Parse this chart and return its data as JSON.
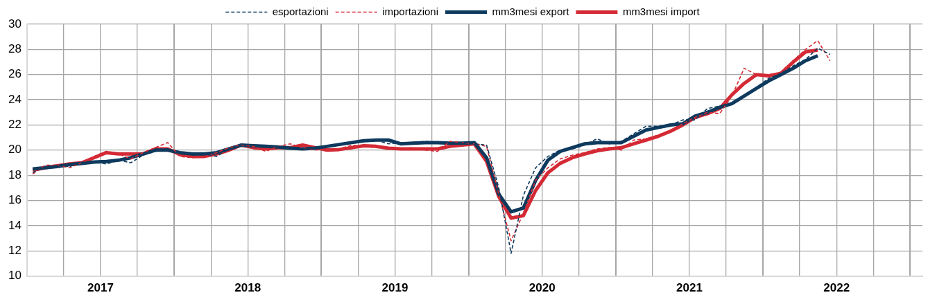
{
  "chart_data": {
    "type": "line",
    "x": [
      "2017-01-15",
      "2017-02-15",
      "2017-03-15",
      "2017-04-15",
      "2017-05-15",
      "2017-06-15",
      "2017-07-15",
      "2017-08-15",
      "2017-09-15",
      "2017-10-15",
      "2017-11-15",
      "2017-12-15",
      "2018-01-15",
      "2018-02-15",
      "2018-03-15",
      "2018-04-15",
      "2018-05-15",
      "2018-06-15",
      "2018-07-15",
      "2018-08-15",
      "2018-09-15",
      "2018-10-15",
      "2018-11-15",
      "2018-12-15",
      "2019-01-15",
      "2019-02-15",
      "2019-03-15",
      "2019-04-15",
      "2019-05-15",
      "2019-06-15",
      "2019-07-15",
      "2019-08-15",
      "2019-09-15",
      "2019-10-15",
      "2019-11-15",
      "2019-12-15",
      "2020-01-15",
      "2020-02-15",
      "2020-03-15",
      "2020-04-15",
      "2020-05-15",
      "2020-06-15",
      "2020-07-15",
      "2020-08-15",
      "2020-09-15",
      "2020-10-15",
      "2020-11-15",
      "2020-12-15",
      "2021-01-15",
      "2021-02-15",
      "2021-03-15",
      "2021-04-15",
      "2021-05-15",
      "2021-06-15",
      "2021-07-15",
      "2021-08-15",
      "2021-09-15",
      "2021-10-15",
      "2021-11-15",
      "2021-12-15",
      "2022-01-15",
      "2022-02-15",
      "2022-03-15",
      "2022-04-15",
      "2022-05-15",
      "2022-06-15"
    ],
    "series": [
      {
        "name": "esportazioni",
        "color": "#0e3a5e",
        "line_style": "dashed",
        "values": [
          18.2,
          18.7,
          18.8,
          18.7,
          19.0,
          19.1,
          18.9,
          19.2,
          19.0,
          19.6,
          19.9,
          20.1,
          19.8,
          19.6,
          19.7,
          19.5,
          20.1,
          20.4,
          20.4,
          20.2,
          20.3,
          20.2,
          20.1,
          20.1,
          20.3,
          20.4,
          20.6,
          20.8,
          20.8,
          20.5,
          20.6,
          20.6,
          20.7,
          20.6,
          20.5,
          20.6,
          20.5,
          20.4,
          17.0,
          11.8,
          16.4,
          18.6,
          19.5,
          20.0,
          20.1,
          20.4,
          20.9,
          20.5,
          20.7,
          21.3,
          21.9,
          21.9,
          22.0,
          22.4,
          22.4,
          23.3,
          23.5,
          23.7,
          24.2,
          25.0,
          25.7,
          26.1,
          26.7,
          27.2,
          28.1,
          27.6
        ]
      },
      {
        "name": "importazioni",
        "color": "#d42a35",
        "line_style": "dashed",
        "values": [
          18.1,
          18.8,
          18.8,
          18.6,
          19.0,
          19.5,
          19.9,
          19.7,
          19.3,
          19.8,
          20.2,
          20.6,
          19.5,
          19.4,
          19.5,
          19.8,
          20.2,
          20.4,
          20.3,
          19.9,
          20.3,
          20.5,
          20.2,
          20.0,
          20.1,
          20.1,
          20.4,
          20.3,
          20.2,
          20.1,
          20.1,
          20.2,
          20.0,
          19.9,
          20.7,
          20.6,
          20.5,
          20.3,
          16.5,
          12.8,
          15.0,
          17.6,
          18.6,
          19.3,
          19.6,
          19.8,
          20.1,
          20.2,
          20.0,
          20.8,
          20.9,
          21.2,
          21.6,
          22.1,
          22.6,
          23.0,
          22.9,
          24.3,
          26.5,
          26.0,
          25.9,
          26.2,
          27.1,
          28.0,
          28.7,
          27.1
        ]
      },
      {
        "name": "mm3mesi export",
        "color": "#0e3a5e",
        "line_style": "solid",
        "values": [
          18.5,
          18.6,
          18.7,
          18.85,
          18.95,
          19.05,
          19.1,
          19.2,
          19.4,
          19.7,
          20.0,
          20.0,
          19.8,
          19.7,
          19.7,
          19.8,
          20.1,
          20.4,
          20.35,
          20.3,
          20.25,
          20.15,
          20.1,
          20.15,
          20.3,
          20.45,
          20.6,
          20.75,
          20.8,
          20.8,
          20.5,
          20.55,
          20.6,
          20.6,
          20.55,
          20.55,
          20.6,
          19.4,
          16.5,
          15.1,
          15.4,
          17.6,
          19.2,
          19.9,
          20.2,
          20.5,
          20.6,
          20.6,
          20.6,
          21.1,
          21.6,
          21.8,
          22.0,
          22.1,
          22.7,
          23.0,
          23.4,
          23.7,
          24.3,
          24.9,
          25.5,
          26.0,
          26.5,
          27.1,
          27.5,
          null
        ]
      },
      {
        "name": "mm3mesi import",
        "color": "#d42a35",
        "line_style": "solid",
        "values": [
          18.4,
          18.6,
          18.75,
          18.9,
          19.0,
          19.4,
          19.8,
          19.7,
          19.7,
          19.7,
          20.1,
          20.1,
          19.65,
          19.5,
          19.5,
          19.7,
          20.0,
          20.4,
          20.2,
          20.1,
          20.2,
          20.2,
          20.4,
          20.2,
          20.0,
          20.05,
          20.2,
          20.35,
          20.3,
          20.15,
          20.1,
          20.1,
          20.1,
          20.1,
          20.3,
          20.4,
          20.5,
          19.1,
          16.3,
          14.6,
          14.8,
          16.8,
          18.2,
          18.95,
          19.4,
          19.7,
          19.95,
          20.1,
          20.2,
          20.5,
          20.8,
          21.1,
          21.5,
          22.0,
          22.6,
          22.9,
          23.3,
          24.4,
          25.3,
          26.0,
          25.9,
          26.1,
          27.0,
          27.8,
          27.95,
          null
        ]
      }
    ],
    "xlim": [
      "2017-01-01",
      "2023-02-01"
    ],
    "xticks": [
      {
        "value": "2017-01-01",
        "label": null
      },
      {
        "value": "2017-04-01",
        "label": null
      },
      {
        "value": "2017-07-01",
        "label": "2017"
      },
      {
        "value": "2017-10-01",
        "label": null
      },
      {
        "value": "2018-01-01",
        "label": null
      },
      {
        "value": "2018-04-01",
        "label": null
      },
      {
        "value": "2018-07-01",
        "label": "2018"
      },
      {
        "value": "2018-10-01",
        "label": null
      },
      {
        "value": "2019-01-01",
        "label": null
      },
      {
        "value": "2019-04-01",
        "label": null
      },
      {
        "value": "2019-07-01",
        "label": "2019"
      },
      {
        "value": "2019-10-01",
        "label": null
      },
      {
        "value": "2020-01-01",
        "label": null
      },
      {
        "value": "2020-04-01",
        "label": null
      },
      {
        "value": "2020-07-01",
        "label": "2020"
      },
      {
        "value": "2020-10-01",
        "label": null
      },
      {
        "value": "2021-01-01",
        "label": null
      },
      {
        "value": "2021-04-01",
        "label": null
      },
      {
        "value": "2021-07-01",
        "label": "2021"
      },
      {
        "value": "2021-10-01",
        "label": null
      },
      {
        "value": "2022-01-01",
        "label": null
      },
      {
        "value": "2022-04-01",
        "label": null
      },
      {
        "value": "2022-07-01",
        "label": "2022"
      },
      {
        "value": "2022-10-01",
        "label": null
      },
      {
        "value": "2023-01-01",
        "label": null
      }
    ],
    "ylim": [
      10,
      30
    ],
    "yticks": [
      10,
      12,
      14,
      16,
      18,
      20,
      22,
      24,
      26,
      28,
      30
    ],
    "grid": true,
    "legend": "top",
    "marker": "none"
  }
}
